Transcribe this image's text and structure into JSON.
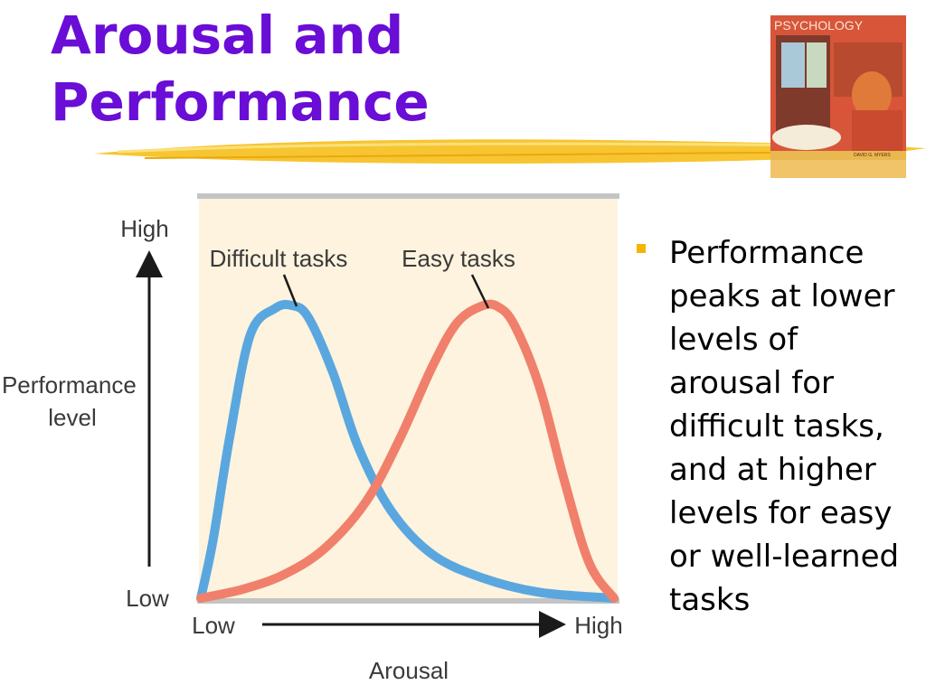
{
  "slide": {
    "title": "Arousal and\nPerformance",
    "bullet": "Performance peaks at lower levels of arousal for difficult tasks, and at higher levels for easy or well-learned tasks"
  },
  "book_cover": {
    "label": "PSYCHOLOGY",
    "author": "DAVID G. MYERS"
  },
  "colors": {
    "title": "#6a0dd6",
    "accent": "#f5b400",
    "plot_background": "#fdf3de",
    "difficult": "#5aa7e0",
    "easy": "#f0806b"
  },
  "chart_data": {
    "type": "line",
    "title": "",
    "xlabel": "Arousal",
    "ylabel": "Performance level",
    "x_ticks": [
      "Low",
      "High"
    ],
    "y_ticks": [
      "Low",
      "High"
    ],
    "xlim": [
      0,
      1
    ],
    "ylim": [
      0,
      1
    ],
    "grid": false,
    "series": [
      {
        "name": "Difficult tasks",
        "color": "#5aa7e0",
        "x": [
          0.0,
          0.03,
          0.07,
          0.12,
          0.18,
          0.22,
          0.26,
          0.32,
          0.38,
          0.46,
          0.56,
          0.68,
          0.82,
          1.0
        ],
        "y": [
          0.0,
          0.2,
          0.55,
          0.9,
          0.99,
          1.0,
          0.96,
          0.77,
          0.52,
          0.3,
          0.15,
          0.07,
          0.02,
          0.0
        ]
      },
      {
        "name": "Easy tasks",
        "color": "#f0806b",
        "x": [
          0.0,
          0.1,
          0.2,
          0.3,
          0.4,
          0.48,
          0.56,
          0.62,
          0.68,
          0.72,
          0.76,
          0.82,
          0.88,
          0.94,
          1.0
        ],
        "y": [
          0.0,
          0.03,
          0.08,
          0.17,
          0.33,
          0.54,
          0.79,
          0.94,
          0.998,
          0.995,
          0.93,
          0.72,
          0.4,
          0.12,
          0.0
        ]
      }
    ]
  }
}
